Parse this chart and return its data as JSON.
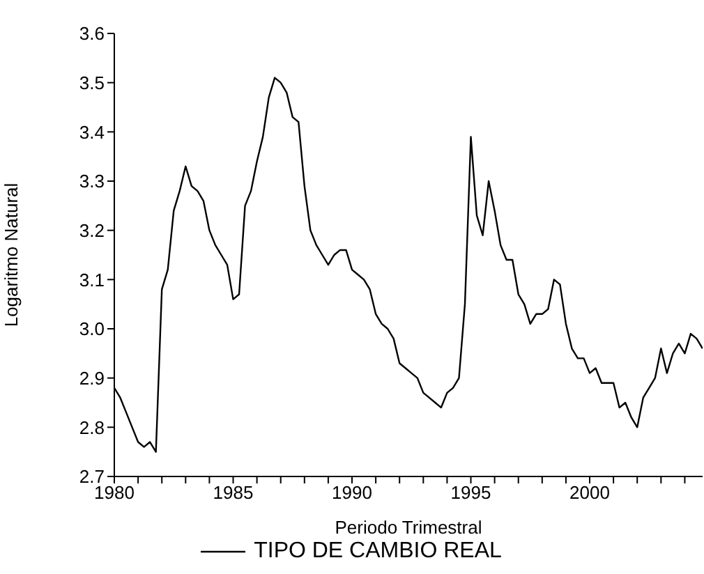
{
  "chart_data": {
    "type": "line",
    "xlabel": "Periodo Trimestral",
    "ylabel": "Logaritmo Natural",
    "x": [
      1980,
      1980.25,
      1980.5,
      1980.75,
      1981,
      1981.25,
      1981.5,
      1981.75,
      1982,
      1982.25,
      1982.5,
      1982.75,
      1983,
      1983.25,
      1983.5,
      1983.75,
      1984,
      1984.25,
      1984.5,
      1984.75,
      1985,
      1985.25,
      1985.5,
      1985.75,
      1986,
      1986.25,
      1986.5,
      1986.75,
      1987,
      1987.25,
      1987.5,
      1987.75,
      1988,
      1988.25,
      1988.5,
      1988.75,
      1989,
      1989.25,
      1989.5,
      1989.75,
      1990,
      1990.25,
      1990.5,
      1990.75,
      1991,
      1991.25,
      1991.5,
      1991.75,
      1992,
      1992.25,
      1992.5,
      1992.75,
      1993,
      1993.25,
      1993.5,
      1993.75,
      1994,
      1994.25,
      1994.5,
      1994.75,
      1995,
      1995.25,
      1995.5,
      1995.75,
      1996,
      1996.25,
      1996.5,
      1996.75,
      1997,
      1997.25,
      1997.5,
      1997.75,
      1998,
      1998.25,
      1998.5,
      1998.75,
      1999,
      1999.25,
      1999.5,
      1999.75,
      2000,
      2000.25,
      2000.5,
      2000.75,
      2001,
      2001.25,
      2001.5,
      2001.75,
      2002,
      2002.25,
      2002.5,
      2002.75,
      2003,
      2003.25,
      2003.5,
      2003.75,
      2004,
      2004.25,
      2004.5,
      2004.75
    ],
    "series": [
      {
        "name": "TIPO DE CAMBIO REAL",
        "color": "#000000",
        "values": [
          2.88,
          2.86,
          2.83,
          2.8,
          2.77,
          2.76,
          2.77,
          2.75,
          3.08,
          3.12,
          3.24,
          3.28,
          3.33,
          3.29,
          3.28,
          3.26,
          3.2,
          3.17,
          3.15,
          3.13,
          3.06,
          3.07,
          3.25,
          3.28,
          3.34,
          3.39,
          3.47,
          3.51,
          3.5,
          3.48,
          3.43,
          3.42,
          3.29,
          3.2,
          3.17,
          3.15,
          3.13,
          3.15,
          3.16,
          3.16,
          3.12,
          3.11,
          3.1,
          3.08,
          3.03,
          3.01,
          3.0,
          2.98,
          2.93,
          2.92,
          2.91,
          2.9,
          2.87,
          2.86,
          2.85,
          2.84,
          2.87,
          2.88,
          2.9,
          3.05,
          3.39,
          3.23,
          3.19,
          3.3,
          3.24,
          3.17,
          3.14,
          3.14,
          3.07,
          3.05,
          3.01,
          3.03,
          3.03,
          3.04,
          3.1,
          3.09,
          3.01,
          2.96,
          2.94,
          2.94,
          2.91,
          2.92,
          2.89,
          2.89,
          2.89,
          2.84,
          2.85,
          2.82,
          2.8,
          2.86,
          2.88,
          2.9,
          2.96,
          2.91,
          2.95,
          2.97,
          2.95,
          2.99,
          2.98,
          2.96
        ]
      }
    ],
    "xlim": [
      1980,
      2004.75
    ],
    "xticks": [
      1980,
      {
        "value": 1981,
        "label": null
      },
      {
        "value": 1982,
        "label": null
      },
      {
        "value": 1983,
        "label": null
      },
      {
        "value": 1984,
        "label": null
      },
      1985,
      {
        "value": 1986,
        "label": null
      },
      {
        "value": 1987,
        "label": null
      },
      {
        "value": 1988,
        "label": null
      },
      {
        "value": 1989,
        "label": null
      },
      1990,
      {
        "value": 1991,
        "label": null
      },
      {
        "value": 1992,
        "label": null
      },
      {
        "value": 1993,
        "label": null
      },
      {
        "value": 1994,
        "label": null
      },
      1995,
      {
        "value": 1996,
        "label": null
      },
      {
        "value": 1997,
        "label": null
      },
      {
        "value": 1998,
        "label": null
      },
      {
        "value": 1999,
        "label": null
      },
      2000,
      {
        "value": 2001,
        "label": null
      },
      {
        "value": 2002,
        "label": null
      },
      {
        "value": 2003,
        "label": null
      },
      {
        "value": 2004,
        "label": null
      }
    ],
    "ylim": [
      2.7,
      3.6
    ],
    "yticks": [
      {
        "value": 2.7,
        "label": "2.7"
      },
      {
        "value": 2.8,
        "label": "2.8"
      },
      {
        "value": 2.9,
        "label": "2.9"
      },
      {
        "value": 3.0,
        "label": "3.0"
      },
      {
        "value": 3.1,
        "label": "3.1"
      },
      {
        "value": 3.2,
        "label": "3.2"
      },
      {
        "value": 3.3,
        "label": "3.3"
      },
      {
        "value": 3.4,
        "label": "3.4"
      },
      {
        "value": 3.5,
        "label": "3.5"
      },
      {
        "value": 3.6,
        "label": "3.6"
      }
    ],
    "legend": "bottom",
    "marker": "none",
    "line_style": "solid",
    "grid": false
  }
}
